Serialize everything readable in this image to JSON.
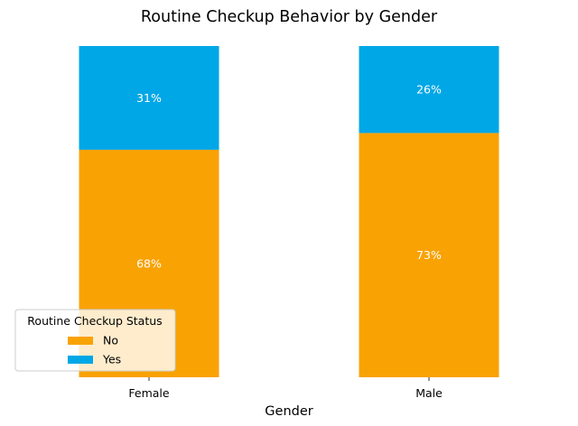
{
  "chart_data": {
    "type": "bar",
    "stacked": true,
    "normalized": true,
    "title": "Routine Checkup Behavior by Gender",
    "xlabel": "Gender",
    "ylabel": "",
    "categories": [
      "Female",
      "Male"
    ],
    "series": [
      {
        "name": "No",
        "values": [
          68,
          73
        ],
        "labels": [
          "68%",
          "73%"
        ],
        "color": "#F9A204"
      },
      {
        "name": "Yes",
        "values": [
          31,
          26
        ],
        "labels": [
          "31%",
          "26%"
        ],
        "color": "#00A7E6"
      }
    ],
    "ylim": [
      0,
      100
    ],
    "grid": false,
    "legend": {
      "title": "Routine Checkup Status",
      "placement": "lower-left",
      "entries": [
        "No",
        "Yes"
      ]
    }
  }
}
